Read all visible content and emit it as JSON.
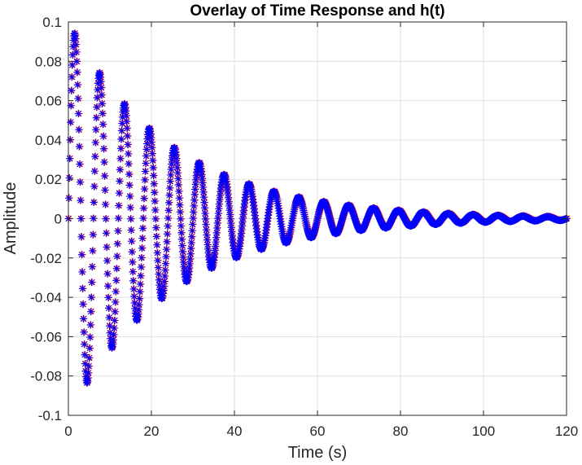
{
  "chart_data": {
    "type": "scatter",
    "title": "Overlay of Time Response and h(t)",
    "xlabel": "Time (s)",
    "ylabel": "Amplitude",
    "xlim": [
      0,
      120
    ],
    "ylim": [
      -0.1,
      0.1
    ],
    "xticks": [
      0,
      20,
      40,
      60,
      80,
      100,
      120
    ],
    "xtick_labels": [
      "0",
      "20",
      "40",
      "60",
      "80",
      "100",
      "120"
    ],
    "yticks": [
      -0.1,
      -0.08,
      -0.06,
      -0.04,
      -0.02,
      0,
      0.02,
      0.04,
      0.06,
      0.08,
      0.1
    ],
    "ytick_labels": [
      "-0.1",
      "-0.08",
      "-0.06",
      "-0.04",
      "-0.02",
      "0",
      "0.02",
      "0.04",
      "0.06",
      "0.08",
      "0.1"
    ],
    "grid": true,
    "legend": "none",
    "series": [
      {
        "marker": "asterisk",
        "color": "#ff0000",
        "model": {
          "amplitude": 0.1,
          "decay_rate": 0.04,
          "frequency_hz": 0.1667,
          "t_start": 0,
          "t_end": 120
        }
      },
      {
        "marker": "asterisk",
        "color": "#0000ff",
        "model": {
          "amplitude": 0.1,
          "decay_rate": 0.04,
          "frequency_hz": 0.1667,
          "t_start": 0,
          "t_end": 120
        }
      }
    ],
    "envelope_peaks": [
      {
        "t": 1.5,
        "value": 0.088
      },
      {
        "t": 4.5,
        "value": -0.096
      },
      {
        "t": 7.5,
        "value": 0.082
      },
      {
        "t": 10.5,
        "value": -0.07
      },
      {
        "t": 13.5,
        "value": 0.061
      },
      {
        "t": 16.5,
        "value": -0.053
      },
      {
        "t": 19.5,
        "value": 0.045
      },
      {
        "t": 22.5,
        "value": -0.038
      },
      {
        "t": 25.5,
        "value": 0.033
      },
      {
        "t": 31.5,
        "value": 0.025
      },
      {
        "t": 37.5,
        "value": 0.018
      },
      {
        "t": 43.5,
        "value": 0.014
      },
      {
        "t": 49.5,
        "value": 0.011
      },
      {
        "t": 61.5,
        "value": 0.006
      },
      {
        "t": 79.5,
        "value": 0.003
      }
    ]
  },
  "colors": {
    "background": "#ffffff",
    "axes_box": "#262626",
    "grid": "#dfdfdf",
    "tick_text": "#262626"
  }
}
